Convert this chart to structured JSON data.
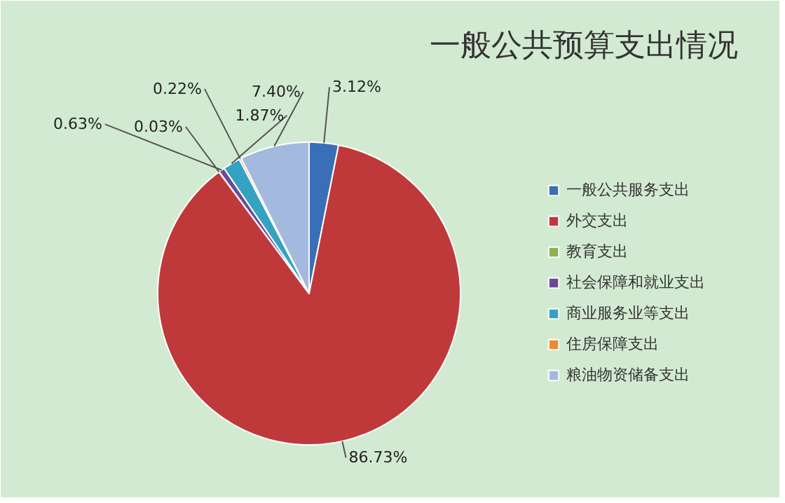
{
  "chart_data": {
    "type": "pie",
    "title": "一般公共预算支出情况",
    "categories": [
      "一般公共服务支出",
      "外交支出",
      "教育支出",
      "社会保障和就业支出",
      "商业服务业等支出",
      "住房保障支出",
      "粮油物资储备支出"
    ],
    "values": [
      3.12,
      86.73,
      0.03,
      0.63,
      1.87,
      0.22,
      7.4
    ],
    "colors": [
      "#3a6fb8",
      "#c0393a",
      "#8fb24a",
      "#6c4996",
      "#34a3c2",
      "#ee8a32",
      "#a3b9de"
    ],
    "value_labels": [
      "3.12%",
      "86.73%",
      "0.03%",
      "0.63%",
      "1.87%",
      "0.22%",
      "7.40%"
    ],
    "legend": "right"
  }
}
